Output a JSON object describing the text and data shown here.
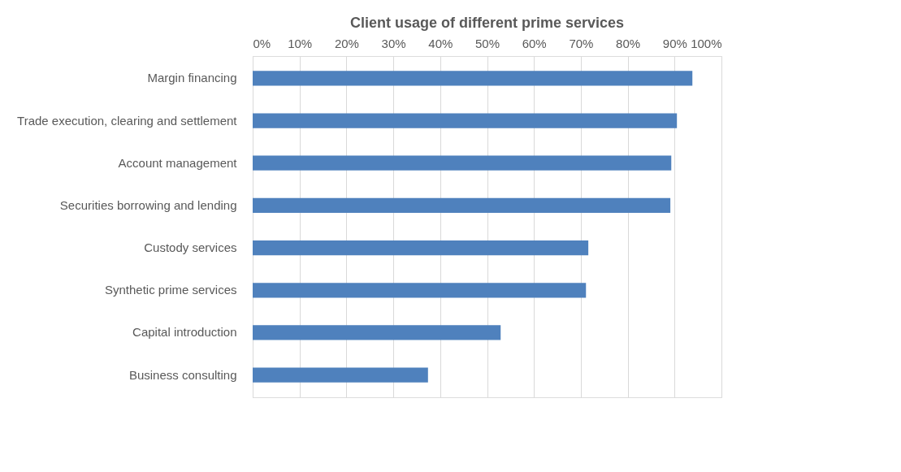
{
  "chart_data": {
    "type": "bar",
    "orientation": "horizontal",
    "title": "Client usage of different prime services",
    "categories": [
      "Margin financing",
      "Trade execution, clearing and settlement",
      "Account management",
      "Securities borrowing and lending",
      "Custody services",
      "Synthetic prime services",
      "Capital introduction",
      "Business consulting"
    ],
    "values": [
      93.8,
      90.5,
      89.3,
      89.1,
      71.6,
      71.1,
      52.9,
      37.4
    ],
    "color": "#4f81bd",
    "xlim": [
      0,
      100
    ],
    "xticks": [
      {
        "value": 0,
        "label": "0%"
      },
      {
        "value": 10,
        "label": "10%"
      },
      {
        "value": 20,
        "label": "20%"
      },
      {
        "value": 30,
        "label": "30%"
      },
      {
        "value": 40,
        "label": "40%"
      },
      {
        "value": 50,
        "label": "50%"
      },
      {
        "value": 60,
        "label": "60%"
      },
      {
        "value": 70,
        "label": "70%"
      },
      {
        "value": 80,
        "label": "80%"
      },
      {
        "value": 90,
        "label": "90%"
      },
      {
        "value": 100,
        "label": "100%"
      }
    ],
    "grid": "x"
  }
}
